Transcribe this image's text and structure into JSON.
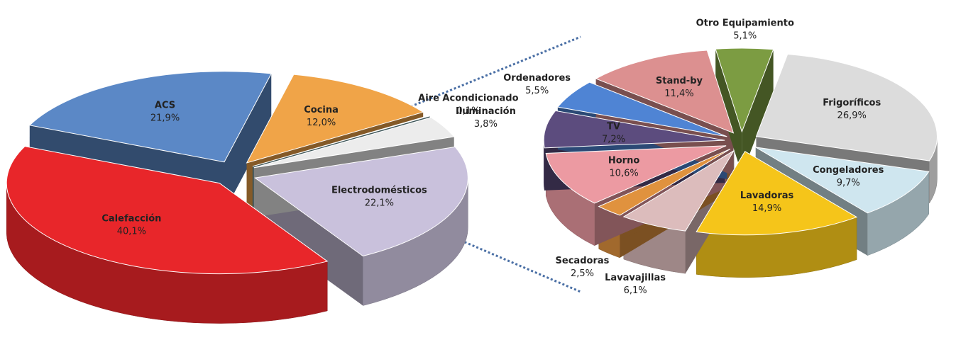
{
  "chart_data": [
    {
      "type": "pie",
      "categories": [
        "Electrodomésticos",
        "Calefacción",
        "ACS",
        "Cocina",
        "Aire Acondicionado",
        "Iluminación"
      ],
      "values": [
        22.1,
        40.1,
        21.9,
        12.0,
        0.1,
        3.8
      ],
      "value_labels": [
        "22,1%",
        "40,1%",
        "21,9%",
        "12,0%",
        "0,1%",
        "3,8%"
      ],
      "colors": [
        "#c9c1dc",
        "#e8262a",
        "#5b88c6",
        "#f0a448",
        "#6f9aa0",
        "#ececec"
      ]
    },
    {
      "type": "pie",
      "categories": [
        "Frigoríficos",
        "Congeladores",
        "Lavadoras",
        "Lavavajillas",
        "Secadoras",
        "Horno",
        "TV",
        "Ordenadores",
        "Stand-by",
        "Otro Equipamiento"
      ],
      "values": [
        26.9,
        9.7,
        14.9,
        6.1,
        2.5,
        10.6,
        7.2,
        5.5,
        11.4,
        5.1
      ],
      "value_labels": [
        "26,9%",
        "9,7%",
        "14,9%",
        "6,1%",
        "2,5%",
        "10,6%",
        "7,2%",
        "5,5%",
        "11,4%",
        "5,1%"
      ],
      "colors": [
        "#dcdcdc",
        "#cfe6ef",
        "#f5c51a",
        "#dcbcbc",
        "#e0923e",
        "#ec9aa2",
        "#5c4c7e",
        "#4f84d4",
        "#dc9090",
        "#7c9c42"
      ]
    }
  ]
}
